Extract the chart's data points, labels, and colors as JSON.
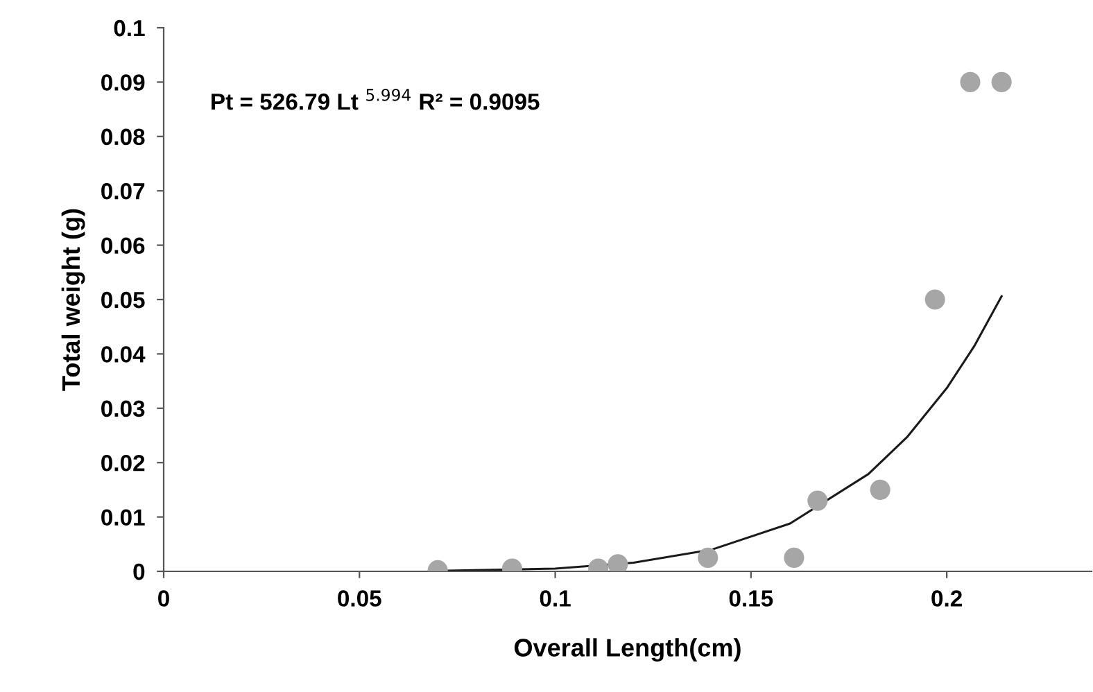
{
  "chart_data": {
    "type": "scatter",
    "xlabel": "Overall Length(cm)",
    "ylabel": "Total weight (g)",
    "x": [
      0.07,
      0.089,
      0.111,
      0.116,
      0.139,
      0.161,
      0.167,
      0.183,
      0.197,
      0.206,
      0.214
    ],
    "series": [
      {
        "color": "#a6a6a6",
        "values": [
          0.0002,
          0.0005,
          0.0005,
          0.0013,
          0.0025,
          0.0025,
          0.013,
          0.015,
          0.05,
          0.09,
          0.09
        ],
        "marker": "circle"
      },
      {
        "type": "line",
        "color": "#1a1a1a",
        "x": [
          0.07,
          0.1,
          0.12,
          0.14,
          0.16,
          0.18,
          0.19,
          0.2,
          0.207,
          0.214
        ],
        "values": [
          0.0001,
          0.0005,
          0.0016,
          0.004,
          0.0088,
          0.0179,
          0.0248,
          0.0337,
          0.0414,
          0.0506
        ],
        "line_style": "solid"
      }
    ],
    "annotations": [
      "Pt = 526.79 Lt $^{5.994}$ R² = 0.9095"
    ],
    "xlim": [
      0,
      0.237
    ],
    "xticks": [
      0,
      0.05,
      0.1,
      0.15,
      0.2
    ],
    "ylim": [
      0,
      0.1
    ],
    "yticks": [
      0,
      0.01,
      0.02,
      0.03,
      0.04,
      0.05,
      0.06,
      0.07,
      0.08,
      0.09,
      0.1
    ],
    "grid": false
  }
}
